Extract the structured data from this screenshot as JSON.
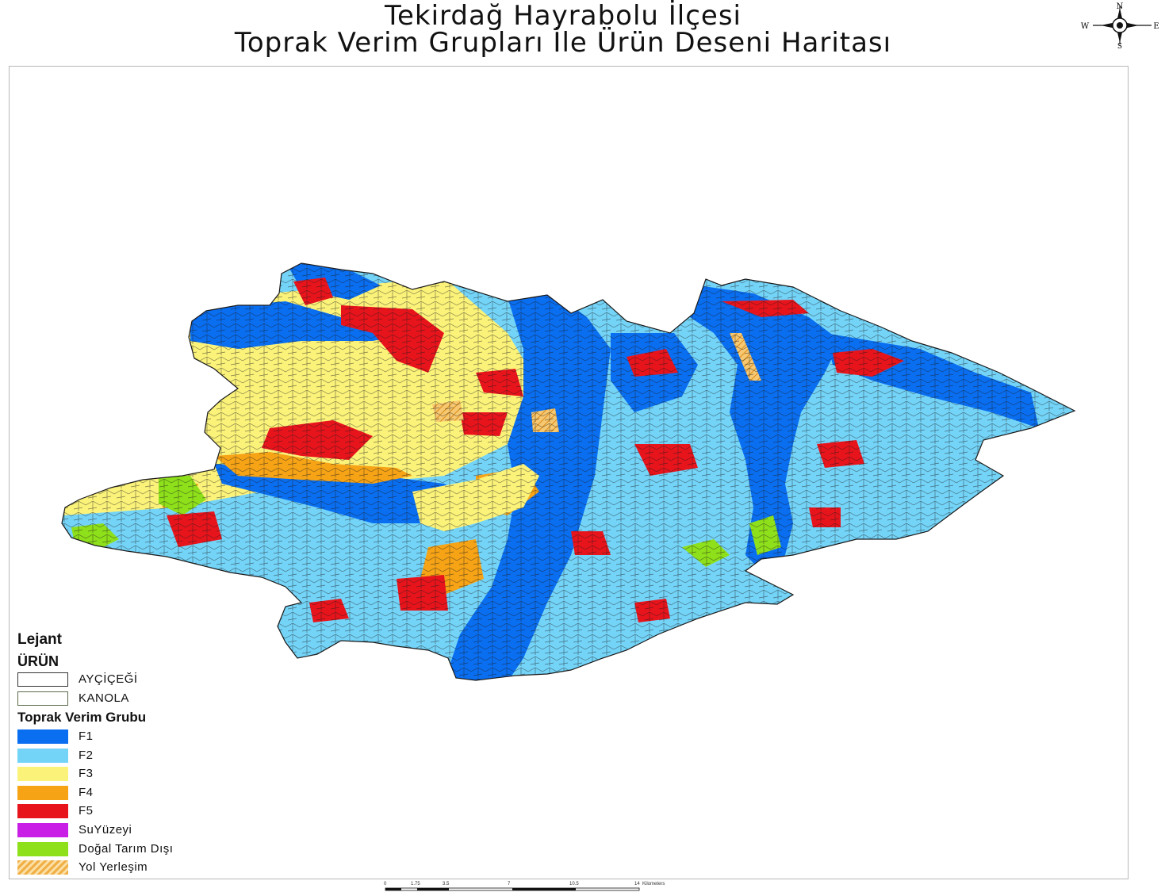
{
  "map": {
    "title_line1": "Tekirdağ Hayrabolu İlçesi",
    "title_line2": "Toprak Verim Grupları İle Ürün Deseni Haritası"
  },
  "compass": {
    "n": "N",
    "s": "S",
    "e": "E",
    "w": "W"
  },
  "legend": {
    "heading": "Lejant",
    "crop_heading": "ÜRÜN",
    "crops": [
      {
        "label": "AYÇİÇEĞİ",
        "border": "#333333"
      },
      {
        "label": "KANOLA",
        "border": "#5a6a4a"
      }
    ],
    "soil_heading": "Toprak Verim Grubu",
    "soil_classes": [
      {
        "label": "F1",
        "color": "#0a6ef0"
      },
      {
        "label": "F2",
        "color": "#74d4f8"
      },
      {
        "label": "F3",
        "color": "#fbf27a"
      },
      {
        "label": "F4",
        "color": "#f6a316"
      },
      {
        "label": "F5",
        "color": "#e8141c"
      },
      {
        "label": "SuYüzeyi",
        "color": "#c81ee6"
      },
      {
        "label": "Doğal Tarım Dışı",
        "color": "#8ee01a"
      },
      {
        "label": "Yol Yerleşim",
        "color": "#f0b046"
      }
    ]
  },
  "scale": {
    "ticks": [
      "0",
      "1.75",
      "3.5",
      "7",
      "10.5",
      "14"
    ],
    "unit": "Kilometers"
  }
}
